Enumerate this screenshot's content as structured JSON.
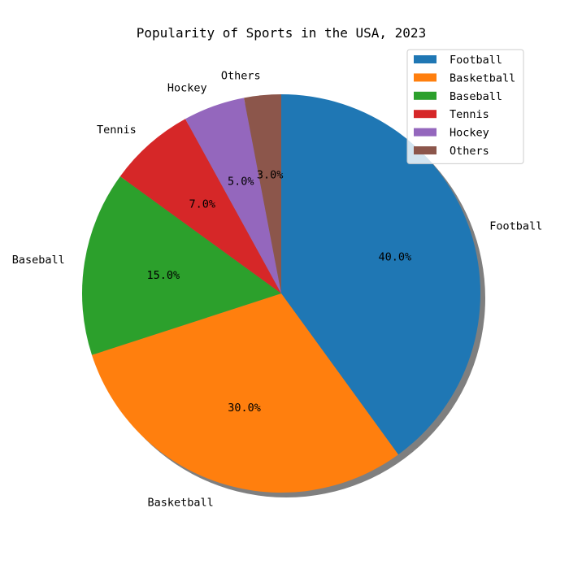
{
  "chart_data": {
    "type": "pie",
    "title": "Popularity of Sports in the USA, 2023",
    "categories": [
      "Football",
      "Basketball",
      "Baseball",
      "Tennis",
      "Hockey",
      "Others"
    ],
    "values": [
      40,
      30,
      15,
      7,
      5,
      3
    ],
    "percent_labels": [
      "40.0%",
      "30.0%",
      "15.0%",
      "7.0%",
      "5.0%",
      "3.0%"
    ],
    "colors": [
      "#1f77b4",
      "#ff7f0e",
      "#2ca02c",
      "#d62728",
      "#9467bd",
      "#8c564b"
    ],
    "start_angle_deg": 90,
    "direction": "clockwise",
    "shadow": true,
    "legend": {
      "position": "top-right",
      "entries": [
        "Football",
        "Basketball",
        "Baseball",
        "Tennis",
        "Hockey",
        "Others"
      ]
    }
  }
}
